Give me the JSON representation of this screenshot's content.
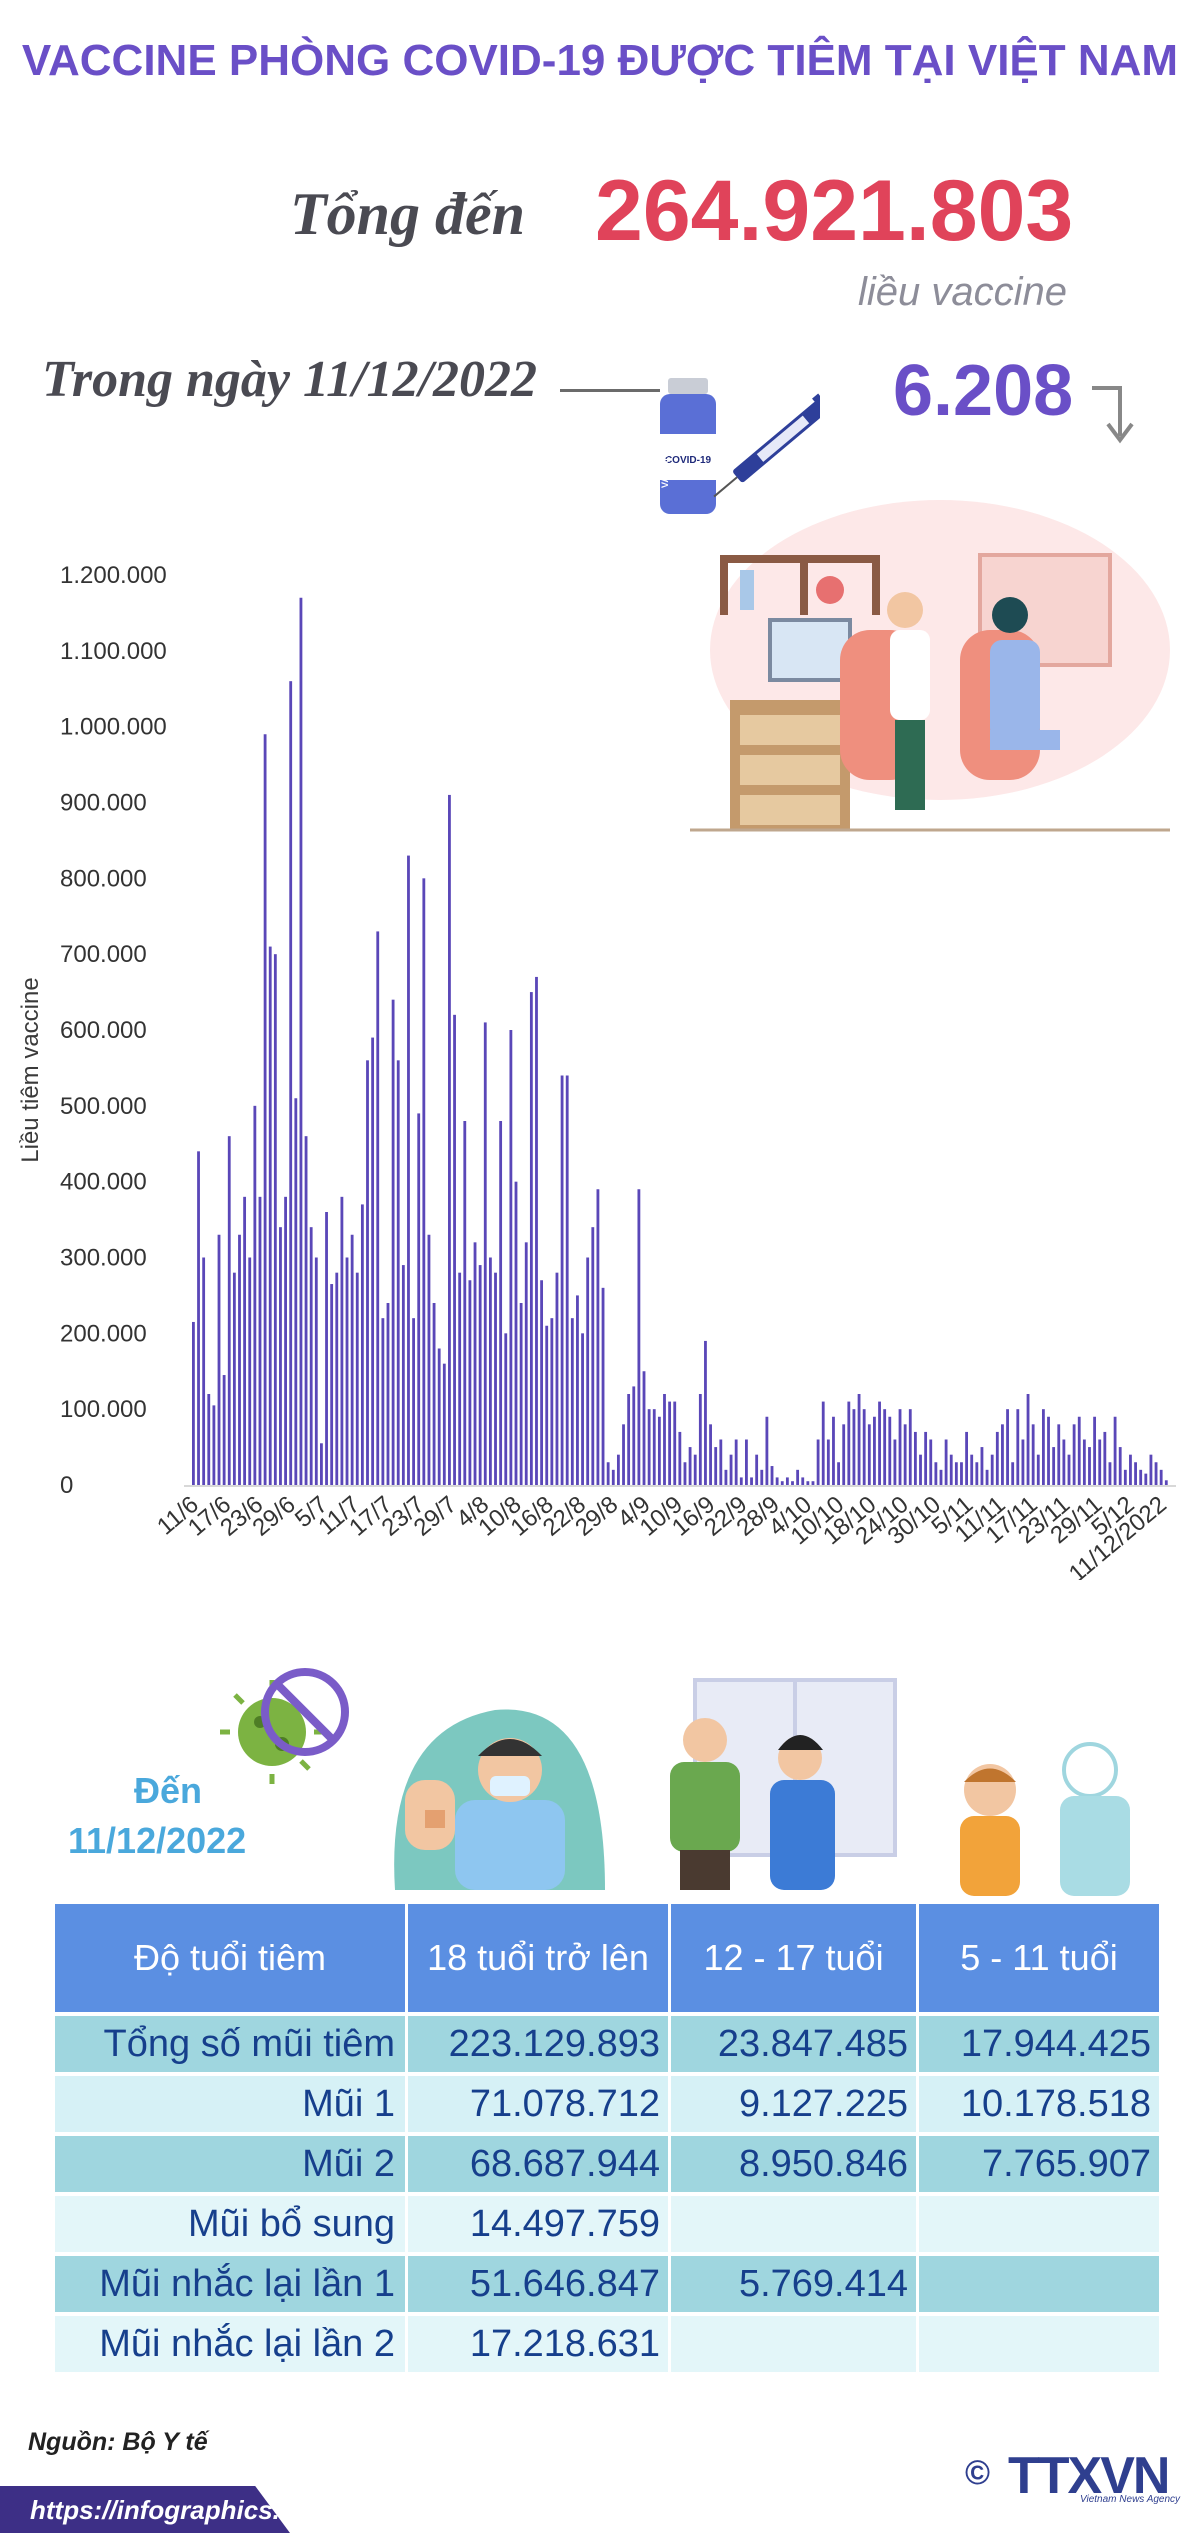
{
  "header": {
    "title": "VACCINE PHÒNG COVID-19 ĐƯỢC TIÊM TẠI VIỆT NAM",
    "total_label": "Tổng đến",
    "total_value": "264.921.803",
    "total_unit": "liều vaccine",
    "day_label": "Trong ngày 11/12/2022",
    "day_value": "6.208",
    "vial_label": "COVID-19",
    "vial_side": "VACCINE"
  },
  "colors": {
    "title": "#6a4fc7",
    "total": "#e0435a",
    "bar": "#5a47b8",
    "table_header": "#5b8fe2",
    "table_text": "#163f8c",
    "asof": "#4aa8dc"
  },
  "chart_data": {
    "type": "bar",
    "ylabel": "Liều tiêm vaccine",
    "ylim": [
      0,
      1200000
    ],
    "yticks": [
      "1.200.000",
      "1.100.000",
      "1.000.000",
      "900.000",
      "800.000",
      "700.000",
      "600.000",
      "500.000",
      "400.000",
      "300.000",
      "200.000",
      "100.000",
      "0"
    ],
    "xtick_labels": [
      "11/6",
      "17/6",
      "23/6",
      "29/6",
      "5/7",
      "11/7",
      "17/7",
      "23/7",
      "29/7",
      "4/8",
      "10/8",
      "16/8",
      "22/8",
      "29/8",
      "4/9",
      "10/9",
      "16/9",
      "22/9",
      "28/9",
      "4/10",
      "10/10",
      "18/10",
      "24/10",
      "30/10",
      "5/11",
      "11/11",
      "17/11",
      "23/11",
      "29/11",
      "5/12",
      "11/12/2022"
    ],
    "values": [
      215000,
      440000,
      300000,
      120000,
      105000,
      330000,
      145000,
      460000,
      280000,
      330000,
      380000,
      300000,
      500000,
      380000,
      990000,
      710000,
      700000,
      340000,
      380000,
      1060000,
      510000,
      1170000,
      460000,
      340000,
      300000,
      55000,
      360000,
      265000,
      280000,
      380000,
      300000,
      330000,
      280000,
      370000,
      560000,
      590000,
      730000,
      220000,
      240000,
      640000,
      560000,
      290000,
      830000,
      220000,
      490000,
      800000,
      330000,
      240000,
      180000,
      160000,
      910000,
      620000,
      280000,
      480000,
      270000,
      320000,
      290000,
      610000,
      300000,
      280000,
      480000,
      200000,
      600000,
      400000,
      240000,
      320000,
      650000,
      670000,
      270000,
      210000,
      220000,
      280000,
      540000,
      540000,
      220000,
      250000,
      200000,
      300000,
      340000,
      390000,
      260000,
      30000,
      20000,
      40000,
      80000,
      120000,
      130000,
      390000,
      150000,
      100000,
      100000,
      90000,
      120000,
      110000,
      110000,
      70000,
      30000,
      50000,
      40000,
      120000,
      190000,
      80000,
      50000,
      60000,
      20000,
      40000,
      60000,
      10000,
      60000,
      10000,
      40000,
      20000,
      90000,
      25000,
      10000,
      5000,
      10000,
      5000,
      20000,
      10000,
      5000,
      5000,
      60000,
      110000,
      60000,
      90000,
      30000,
      80000,
      110000,
      100000,
      120000,
      100000,
      80000,
      90000,
      110000,
      100000,
      90000,
      60000,
      100000,
      80000,
      100000,
      70000,
      40000,
      70000,
      60000,
      30000,
      20000,
      60000,
      40000,
      30000,
      30000,
      70000,
      40000,
      30000,
      50000,
      20000,
      40000,
      70000,
      80000,
      100000,
      30000,
      100000,
      60000,
      120000,
      80000,
      40000,
      100000,
      90000,
      50000,
      80000,
      60000,
      40000,
      80000,
      90000,
      60000,
      50000,
      90000,
      60000,
      70000,
      30000,
      90000,
      50000,
      20000,
      40000,
      30000,
      20000,
      15000,
      40000,
      30000,
      20000,
      6208
    ]
  },
  "asof": {
    "label": "Đến",
    "date": "11/12/2022"
  },
  "table": {
    "headers": [
      "Độ tuổi tiêm",
      "18 tuổi trở lên",
      "12 - 17 tuổi",
      "5 - 11 tuổi"
    ],
    "rows": [
      [
        "Tổng số mũi tiêm",
        "223.129.893",
        "23.847.485",
        "17.944.425"
      ],
      [
        "Mũi 1",
        "71.078.712",
        "9.127.225",
        "10.178.518"
      ],
      [
        "Mũi 2",
        "68.687.944",
        "8.950.846",
        "7.765.907"
      ],
      [
        "Mũi bổ sung",
        "14.497.759",
        "",
        ""
      ],
      [
        "Mũi nhắc lại lần 1",
        "51.646.847",
        "5.769.414",
        ""
      ],
      [
        "Mũi nhắc lại lần 2",
        "17.218.631",
        "",
        ""
      ]
    ]
  },
  "footer": {
    "source": "Nguồn: Bộ Y tế",
    "url": "https://infographics.vn",
    "copyright": "©",
    "logo": "TTXVN",
    "logo_sub": "Vietnam News Agency"
  }
}
